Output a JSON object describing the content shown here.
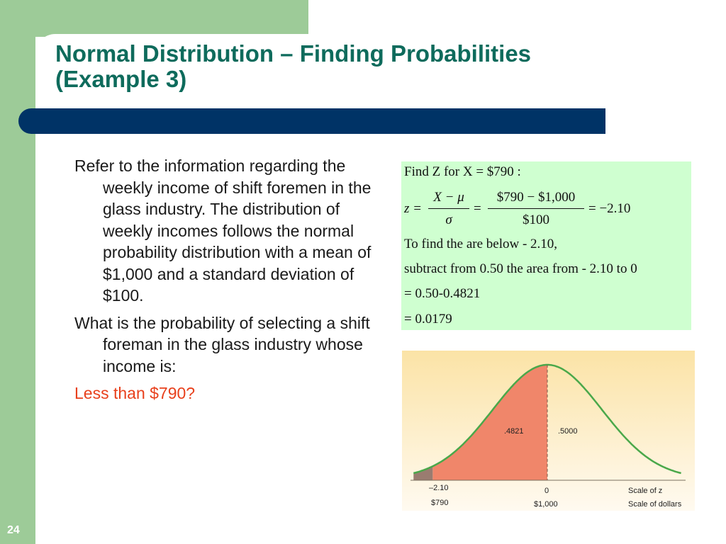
{
  "slide": {
    "title_line1": "Normal Distribution – Finding Probabilities",
    "title_line2": "(Example 3)",
    "page_number": "24"
  },
  "body": {
    "para1": "Refer to the information regarding the weekly income of shift foremen in the glass industry. The distribution of weekly incomes follows the normal probability distribution with a mean of $1,000 and a standard deviation of $100.",
    "para2": "What is the probability of selecting a shift foreman in the glass industry whose income is:",
    "para3": "Less than $790?"
  },
  "calc": {
    "line1": "Find  Z for  X = $790 :",
    "z_lhs": "z =",
    "num1": "X − μ",
    "den1": "σ",
    "eq2": "=",
    "num2": "$790 − $1,000",
    "den2": "$100",
    "result": "= −2.10",
    "line3": "To find  the are below - 2.10,",
    "line4": "subtract from  0.50 the area from  - 2.10 to 0",
    "line5": "= 0.50-0.4821",
    "line6": "= 0.0179"
  },
  "chart": {
    "area_left": ".4821",
    "area_right": ".5000",
    "z_left": "–2.10",
    "z_center": "0",
    "dollar_left": "$790",
    "dollar_center": "$1,000",
    "scale_z": "Scale of z",
    "scale_dollars": "Scale of dollars"
  },
  "colors": {
    "green": "#9dcb98",
    "navy": "#003366",
    "title": "#0e6b5c",
    "shaded": "#f0866a",
    "curve": "#4aa84a",
    "calc_bg": "#cfffd0"
  }
}
